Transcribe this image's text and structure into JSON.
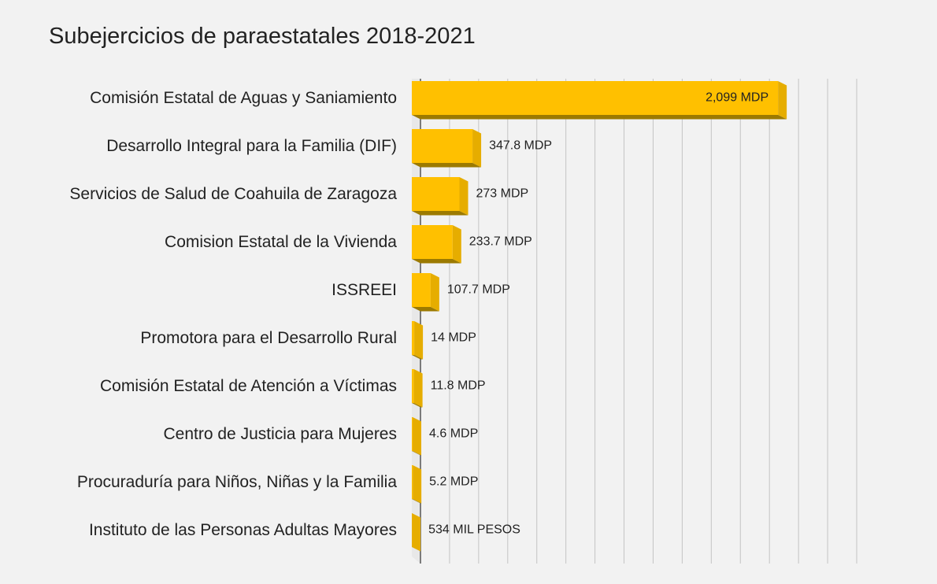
{
  "chart_data": {
    "type": "bar",
    "orientation": "horizontal",
    "title": "Subejercicios de paraestatales 2018-2021",
    "xlabel": "",
    "ylabel": "",
    "unit": "MDP",
    "xlim": [
      0,
      2500
    ],
    "grid": true,
    "style": "3d",
    "colors": {
      "bar_face": "#ffc000",
      "bar_side": "#e6ad00",
      "bar_shadow": "#9c7a00",
      "gridline": "#c4c4c4",
      "axis": "#555555",
      "label": "#222222"
    },
    "categories": [
      "Comisión Estatal de Aguas y Saniamiento",
      "Desarrollo Integral para la Familia (DIF)",
      "Servicios de Salud de Coahuila de Zaragoza",
      "Comision Estatal de la Vivienda",
      "ISSREEI",
      "Promotora para el Desarrollo Rural",
      "Comisión Estatal de Atención a Víctimas",
      "Centro de Justicia para Mujeres",
      "Procuraduría para Niños, Niñas y la Familia",
      "Instituto de las Personas Adultas Mayores"
    ],
    "values": [
      2099,
      347.8,
      273,
      233.7,
      107.7,
      14,
      11.8,
      4.6,
      5.2,
      0.534
    ],
    "data_labels": [
      "2,099 MDP",
      "347.8 MDP",
      "273 MDP",
      "233.7 MDP",
      "107.7 MDP",
      "14 MDP",
      "11.8 MDP",
      "4.6 MDP",
      "5.2 MDP",
      "534 MIL PESOS"
    ]
  }
}
